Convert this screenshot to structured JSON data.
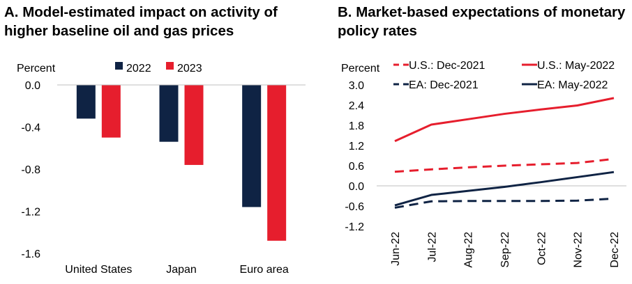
{
  "chart_data": [
    {
      "type": "bar",
      "title": "A. Model-estimated impact on activity of higher baseline oil and gas prices",
      "ylabel": "Percent",
      "categories": [
        "United States",
        "Japan",
        "Euro area"
      ],
      "series": [
        {
          "name": "2022",
          "color": "#0f2344",
          "values": [
            -0.32,
            -0.54,
            -1.16
          ]
        },
        {
          "name": "2023",
          "color": "#e61e2d",
          "values": [
            -0.5,
            -0.76,
            -1.48
          ]
        }
      ],
      "ylim": [
        -1.6,
        0.0
      ],
      "yticks": [
        "0.0",
        "-0.4",
        "-0.8",
        "-1.2",
        "-1.6"
      ],
      "ytick_values": [
        0.0,
        -0.4,
        -0.8,
        -1.2,
        -1.6
      ],
      "legend": "top-center",
      "grid": false
    },
    {
      "type": "line",
      "title": "B. Market-based expectations of monetary policy rates",
      "ylabel": "Percent",
      "x": [
        "Jun-22",
        "Jul-22",
        "Aug-22",
        "Sep-22",
        "Oct-22",
        "Nov-22",
        "Dec-22"
      ],
      "series": [
        {
          "name": "U.S.: Dec-2021",
          "color": "#e61e2d",
          "dash": true,
          "values": [
            0.42,
            0.49,
            0.55,
            0.6,
            0.64,
            0.68,
            0.8
          ]
        },
        {
          "name": "U.S.: May-2022",
          "color": "#e61e2d",
          "dash": false,
          "values": [
            1.33,
            1.82,
            1.98,
            2.14,
            2.27,
            2.39,
            2.61
          ]
        },
        {
          "name": "EA: Dec-2021",
          "color": "#0f2344",
          "dash": true,
          "values": [
            -0.65,
            -0.46,
            -0.45,
            -0.45,
            -0.45,
            -0.44,
            -0.38
          ]
        },
        {
          "name": "EA: May-2022",
          "color": "#0f2344",
          "dash": false,
          "values": [
            -0.58,
            -0.27,
            -0.15,
            -0.03,
            0.11,
            0.26,
            0.41
          ]
        }
      ],
      "ylim": [
        -1.2,
        3.0
      ],
      "yticks": [
        "3.0",
        "2.4",
        "1.8",
        "1.2",
        "0.6",
        "0.0",
        "-0.6",
        "-1.2"
      ],
      "ytick_values": [
        3.0,
        2.4,
        1.8,
        1.2,
        0.6,
        0.0,
        -0.6,
        -1.2
      ],
      "legend": "top",
      "grid": false
    }
  ]
}
